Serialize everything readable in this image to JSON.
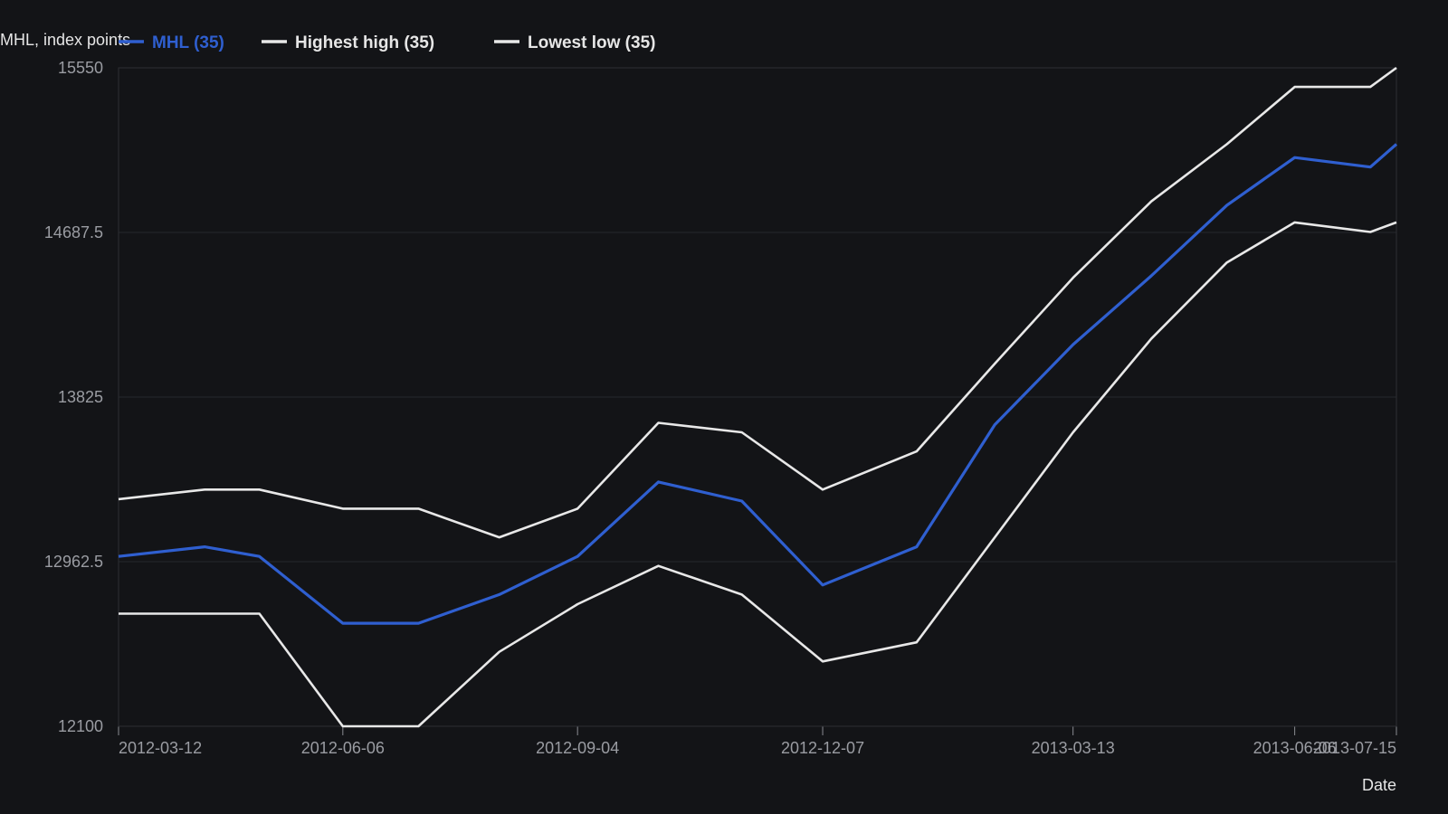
{
  "chart_data": {
    "type": "line",
    "xlabel": "Date",
    "ylabel": "MHL, index points",
    "ylim": [
      12100,
      15550
    ],
    "yticks": [
      "12100",
      "12962.5",
      "13825",
      "14687.5",
      "15550"
    ],
    "xticks": [
      "2012-03-12",
      "2012-06-06",
      "2012-09-04",
      "2012-12-07",
      "2013-03-13",
      "2013-06-06",
      "2013-07-15"
    ],
    "grid": "horizontal",
    "legend_position": "top-left",
    "x": [
      "2012-03-12",
      "2012-04-14",
      "2012-05-05",
      "2012-06-06",
      "2012-07-05",
      "2012-08-05",
      "2012-09-04",
      "2012-10-05",
      "2012-11-06",
      "2012-12-07",
      "2013-01-12",
      "2013-02-11",
      "2013-03-13",
      "2013-04-12",
      "2013-05-11",
      "2013-06-06",
      "2013-07-05",
      "2013-07-15"
    ],
    "series": [
      {
        "name": "MHL (35)",
        "color": "#2f5fd0",
        "values": [
          12990,
          13040,
          12990,
          12640,
          12640,
          12790,
          12990,
          13380,
          13280,
          12840,
          13040,
          13680,
          14100,
          14460,
          14830,
          15080,
          15030,
          15150
        ]
      },
      {
        "name": "Highest high (35)",
        "color": "#e8e8e8",
        "values": [
          13290,
          13340,
          13340,
          13240,
          13240,
          13090,
          13240,
          13690,
          13640,
          13340,
          13540,
          14000,
          14450,
          14850,
          15150,
          15450,
          15450,
          15550
        ]
      },
      {
        "name": "Lowest low (35)",
        "color": "#e8e8e8",
        "values": [
          12690,
          12690,
          12690,
          12100,
          12100,
          12490,
          12740,
          12940,
          12790,
          12440,
          12540,
          13090,
          13640,
          14130,
          14530,
          14740,
          14690,
          14740
        ]
      }
    ]
  }
}
